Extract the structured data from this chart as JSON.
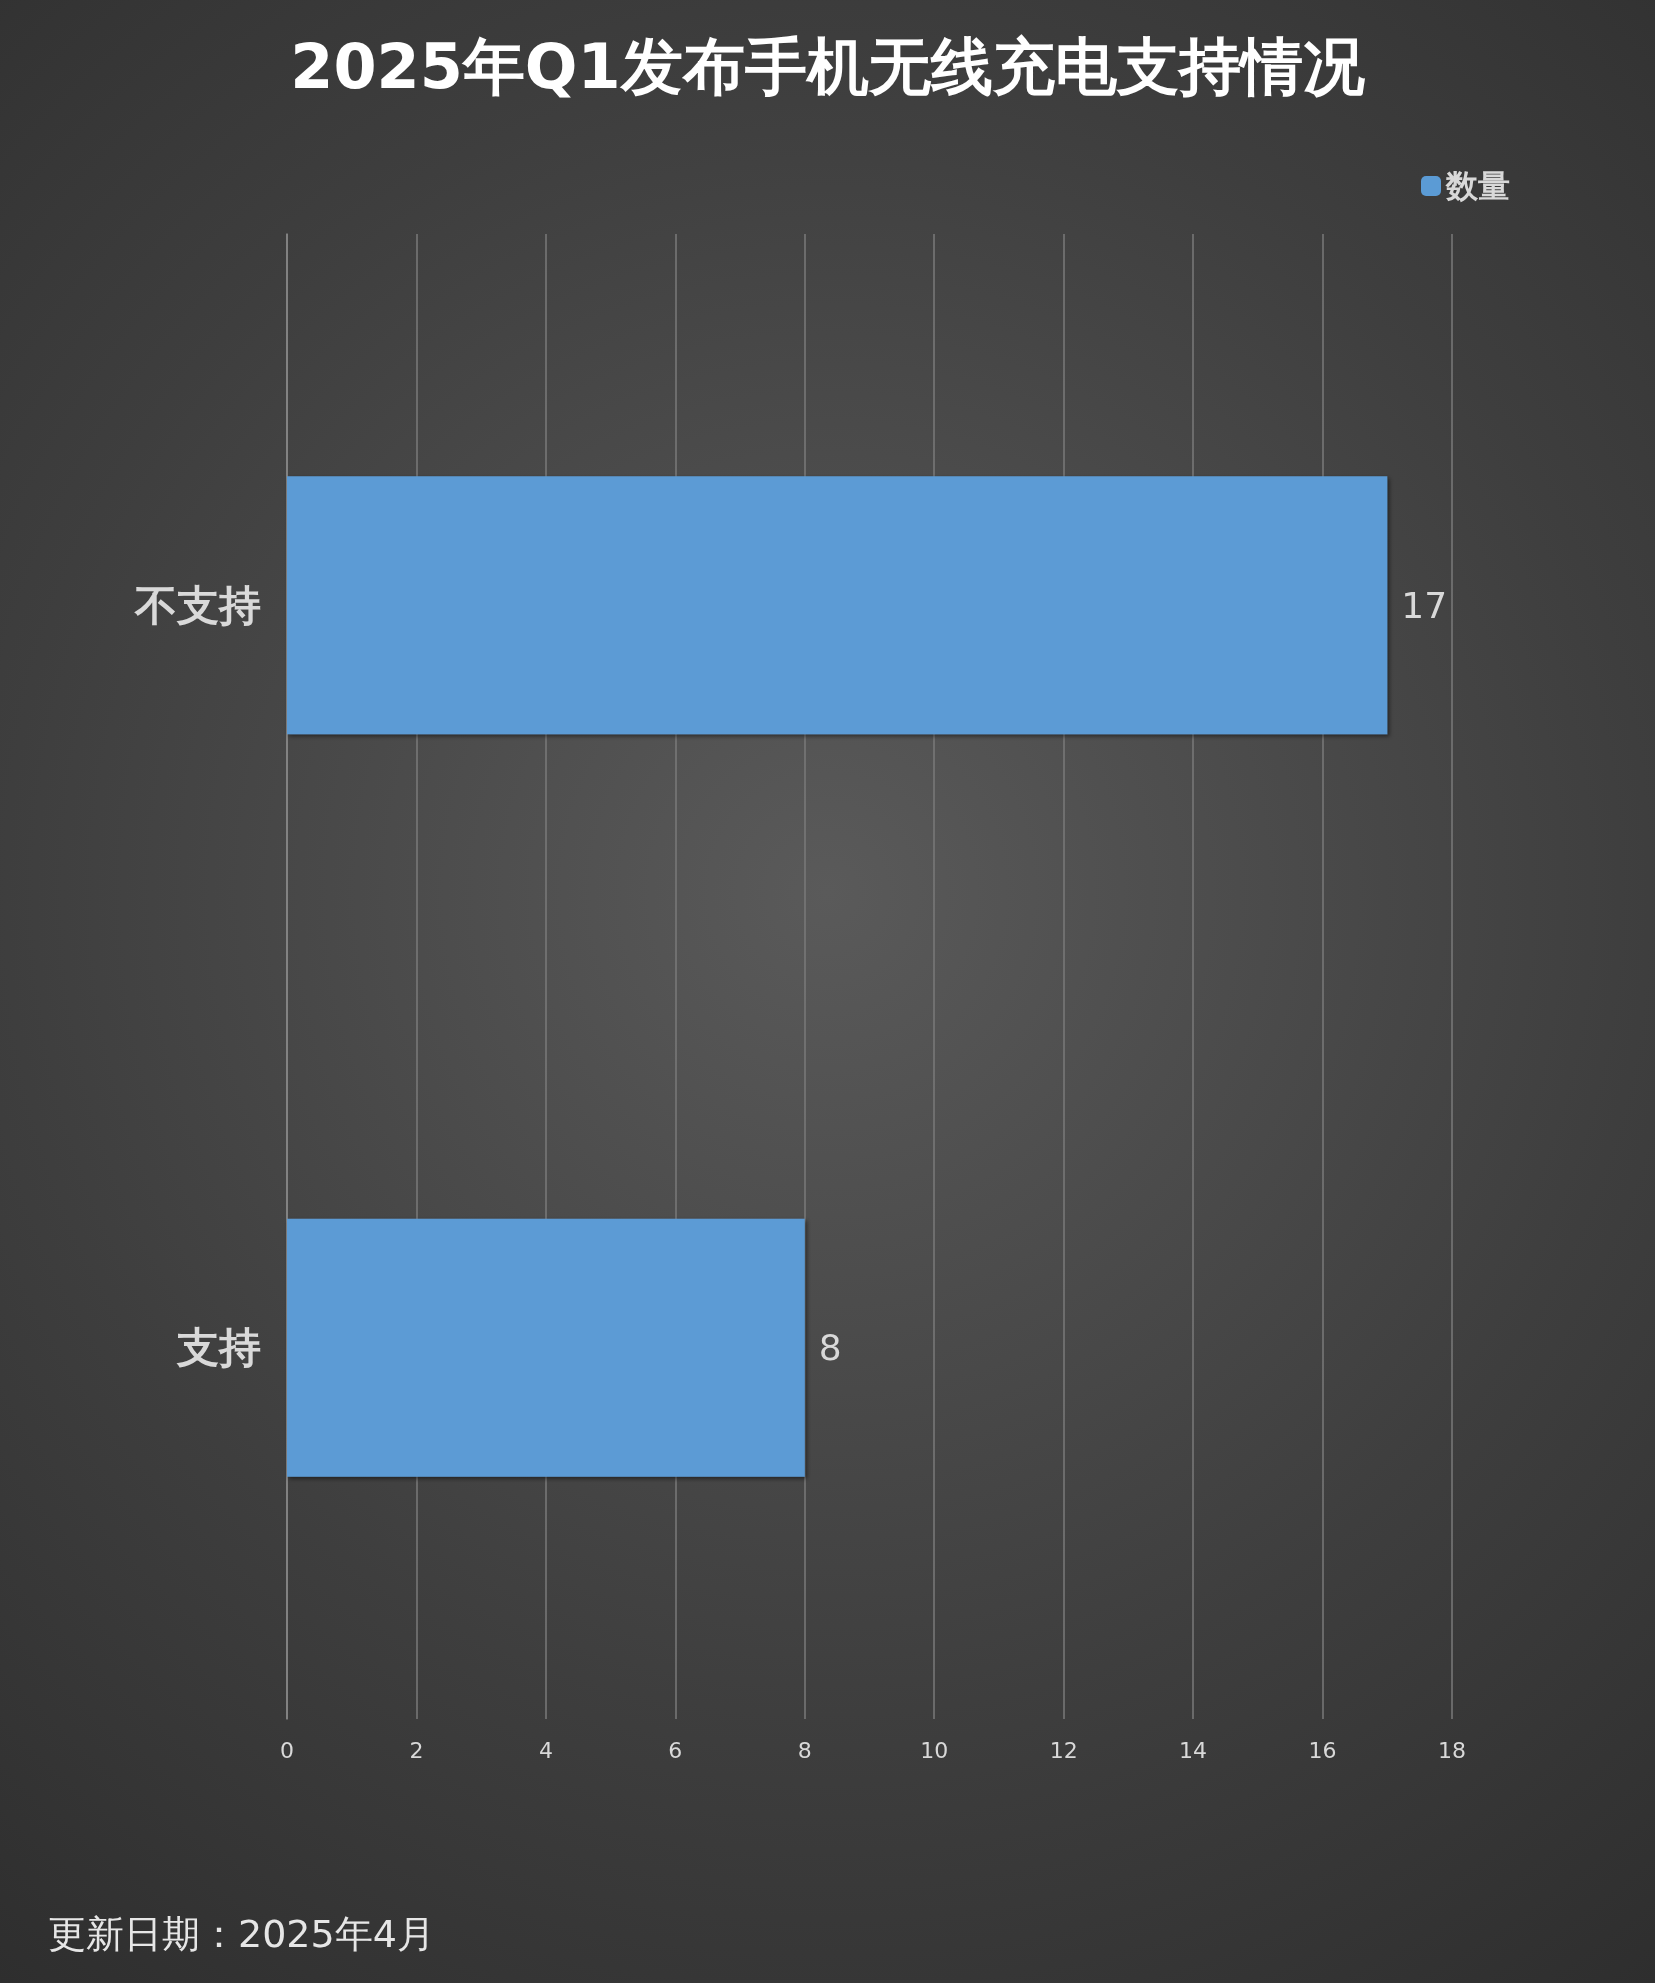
{
  "chart_data": {
    "type": "bar",
    "orientation": "horizontal",
    "title": "2025年Q1发布手机无线充电支持情况",
    "categories": [
      "不支持",
      "支持"
    ],
    "series": [
      {
        "name": "数量",
        "color": "#5b9bd5",
        "values": [
          17,
          8
        ]
      }
    ],
    "xlim": [
      0,
      18
    ],
    "xticks": [
      0,
      2,
      4,
      6,
      8,
      10,
      12,
      14,
      16,
      18
    ],
    "grid": "x",
    "legend": "top right",
    "data_labels": true,
    "annotations": [
      "更新日期：2025年4月"
    ]
  }
}
